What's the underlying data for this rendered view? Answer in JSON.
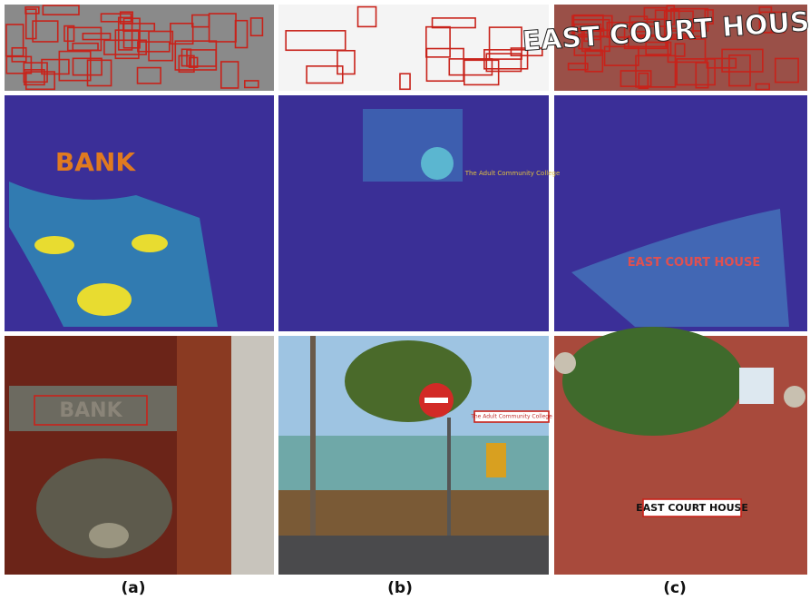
{
  "panels": [
    {
      "label": "(a)",
      "sign_text": "BANK"
    },
    {
      "label": "(b)",
      "sign_text": "The Adult Community College"
    },
    {
      "label": "(c)",
      "sign_text": "EAST COURT HOUSE"
    }
  ]
}
